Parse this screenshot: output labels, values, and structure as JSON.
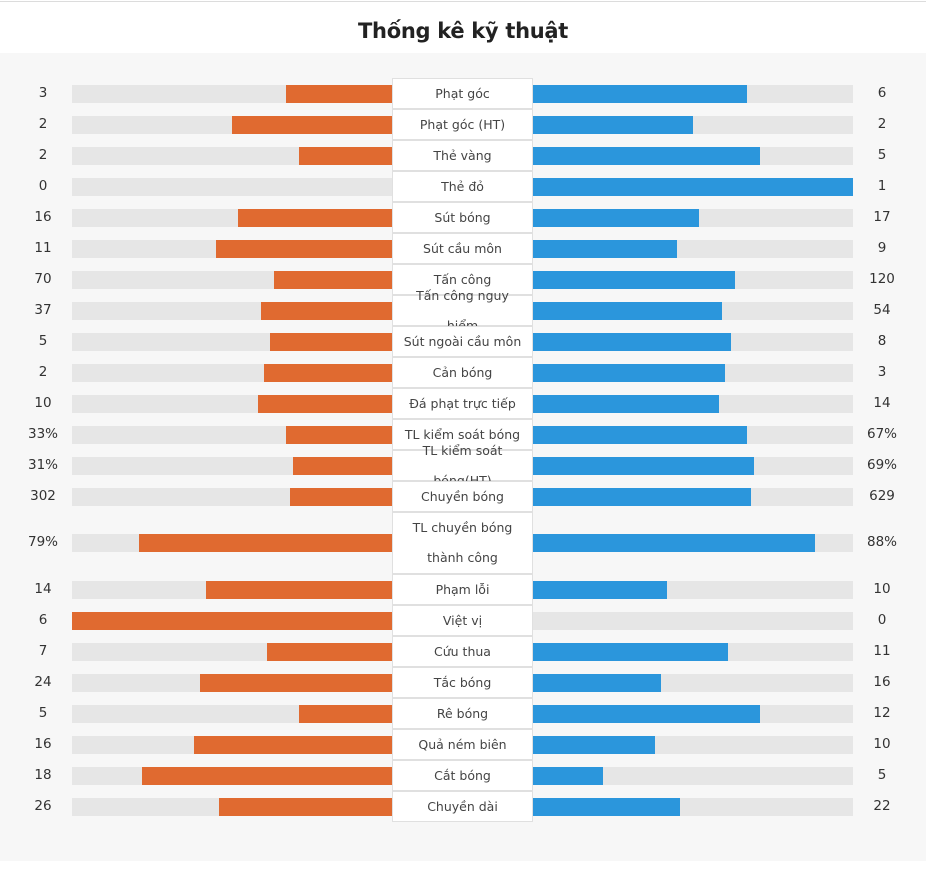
{
  "title": "Thống kê kỹ thuật",
  "colors": {
    "home": "#e06a30",
    "away": "#2b96dc",
    "track": "#e6e6e6"
  },
  "chart_data": {
    "type": "bar",
    "orientation": "diverging-horizontal",
    "categories": [
      "Phạt góc",
      "Phạt góc (HT)",
      "Thẻ vàng",
      "Thẻ đỏ",
      "Sút bóng",
      "Sút cầu môn",
      "Tấn công",
      "Tấn công nguy hiểm",
      "Sút ngoài cầu môn",
      "Cản bóng",
      "Đá phạt trực tiếp",
      "TL kiểm soát bóng",
      "TL kiểm soát bóng(HT)",
      "Chuyền bóng",
      "TL chuyền bóng thành công",
      "Phạm lỗi",
      "Việt vị",
      "Cứu thua",
      "Tắc bóng",
      "Rê bóng",
      "Quả ném biên",
      "Cắt bóng",
      "Chuyền dài"
    ],
    "series": [
      {
        "values": [
          "3",
          "2",
          "2",
          "0",
          "16",
          "11",
          "70",
          "37",
          "5",
          "2",
          "10",
          "33%",
          "31%",
          "302",
          "79%",
          "14",
          "6",
          "7",
          "24",
          "5",
          "16",
          "18",
          "26"
        ]
      },
      {
        "values": [
          "6",
          "2",
          "5",
          "1",
          "17",
          "9",
          "120",
          "54",
          "8",
          "3",
          "14",
          "67%",
          "69%",
          "629",
          "88%",
          "10",
          "0",
          "11",
          "16",
          "12",
          "10",
          "5",
          "22"
        ]
      }
    ],
    "bar_fraction_home": [
      0.33,
      0.5,
      0.29,
      0.0,
      0.48,
      0.55,
      0.37,
      0.41,
      0.38,
      0.4,
      0.42,
      0.33,
      0.31,
      0.32,
      0.79,
      0.58,
      1.0,
      0.39,
      0.6,
      0.29,
      0.62,
      0.78,
      0.54
    ],
    "bar_fraction_away": [
      0.67,
      0.5,
      0.71,
      1.0,
      0.52,
      0.45,
      0.63,
      0.59,
      0.62,
      0.6,
      0.58,
      0.67,
      0.69,
      0.68,
      0.88,
      0.42,
      0.0,
      0.61,
      0.4,
      0.71,
      0.38,
      0.22,
      0.46
    ]
  }
}
